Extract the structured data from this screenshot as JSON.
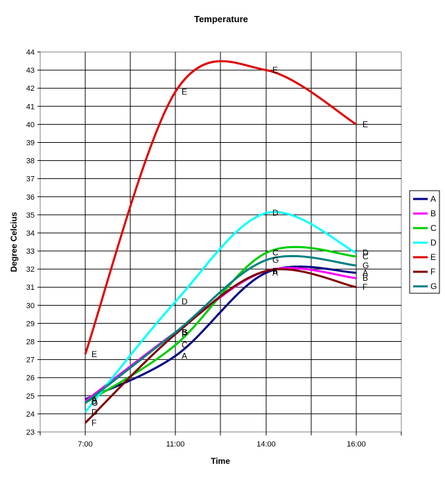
{
  "chart_data": {
    "type": "line",
    "title": "Temperature",
    "xlabel": "Time",
    "ylabel": "Degree Celcius",
    "categories": [
      "7:00",
      "11:00",
      "14:00",
      "16:00"
    ],
    "ylim": [
      23,
      44
    ],
    "ytick_step": 1,
    "grid": true,
    "legend_position": "right",
    "series": [
      {
        "name": "A",
        "color": "#000080",
        "values": [
          24.8,
          27.2,
          31.8,
          31.8
        ]
      },
      {
        "name": "B",
        "color": "#ff00ff",
        "values": [
          24.7,
          28.5,
          31.9,
          31.5
        ]
      },
      {
        "name": "C",
        "color": "#00cc00",
        "values": [
          24.6,
          27.8,
          32.9,
          32.7
        ]
      },
      {
        "name": "D",
        "color": "#00ffff",
        "values": [
          24.1,
          30.2,
          35.1,
          32.9
        ]
      },
      {
        "name": "E",
        "color": "#e00000",
        "values": [
          27.3,
          41.8,
          43.0,
          40.0
        ]
      },
      {
        "name": "F",
        "color": "#800000",
        "values": [
          23.5,
          28.4,
          31.9,
          31.0
        ]
      },
      {
        "name": "G",
        "color": "#008080",
        "values": [
          24.6,
          28.5,
          32.5,
          32.2
        ]
      }
    ]
  }
}
